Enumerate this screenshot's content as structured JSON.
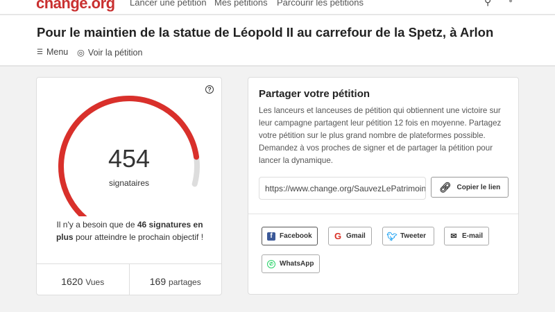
{
  "nav": {
    "logo": "change.org",
    "links": [
      "Lancer une pétition",
      "Mes pétitions",
      "Parcourir les pétitions"
    ]
  },
  "header": {
    "title": "Pour le maintien de la statue de Léopold II au carrefour de la Spetz, à Arlon",
    "menu": "Menu",
    "view": "Voir la pétition"
  },
  "progress": {
    "count": "454",
    "count_label": "signataires",
    "fraction": 0.908,
    "need_prefix": "Il n'y a besoin que de ",
    "need_bold": "46 signatures en plus",
    "need_suffix": " pour atteindre le prochain objectif !",
    "views_num": "1620",
    "views_label": "Vues",
    "shares_num": "169",
    "shares_label": "partages",
    "colors": {
      "fill": "#d9302b",
      "track": "#dddddd"
    }
  },
  "share": {
    "title": "Partager votre pétition",
    "text": "Les lanceurs et lanceuses de pétition qui obtiennent une victoire sur leur campagne partagent leur pétition 12 fois en moyenne. Partagez votre pétition sur le plus grand nombre de plateformes possible. Demandez à vos proches de signer et de partager la pétition pour lancer la dynamique.",
    "url": "https://www.change.org/SauvezLePatrimoine",
    "copy": "Copier le lien",
    "buttons": [
      "Facebook",
      "Gmail",
      "Tweeter",
      "E-mail",
      "WhatsApp"
    ]
  }
}
